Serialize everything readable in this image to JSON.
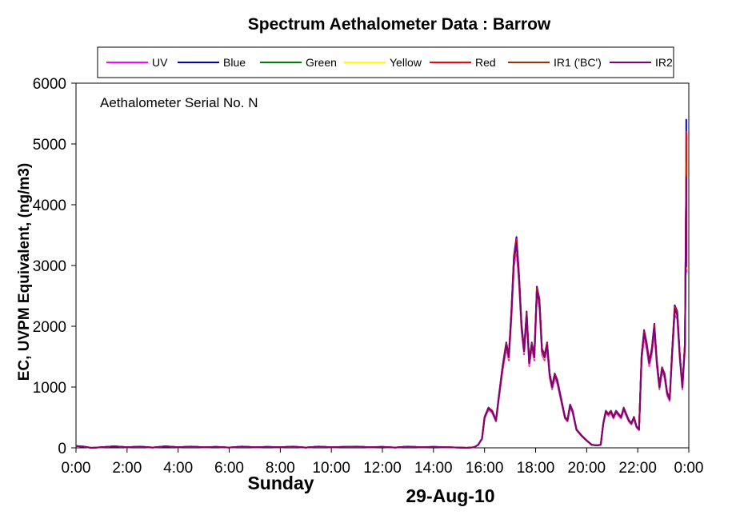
{
  "chart_data": {
    "type": "line",
    "title": "Spectrum Aethalometer Data  :  Barrow",
    "ylabel": "EC, UVPM Equivalent, (ng/m3)",
    "annotation": "Aethalometer  Serial No. N",
    "day_label": "Sunday",
    "date_label": "29-Aug-10",
    "ylim": [
      0,
      6000
    ],
    "xlim": [
      0,
      24
    ],
    "y_ticks": [
      "0",
      "1000",
      "2000",
      "3000",
      "4000",
      "5000",
      "6000"
    ],
    "x_ticks": [
      "0:00",
      "2:00",
      "4:00",
      "6:00",
      "8:00",
      "10:00",
      "12:00",
      "14:00",
      "16:00",
      "18:00",
      "20:00",
      "22:00",
      "0:00"
    ],
    "legend_position": "top",
    "grid": false,
    "base_series": [
      [
        0,
        30
      ],
      [
        0.3,
        20
      ],
      [
        0.6,
        0
      ],
      [
        1,
        10
      ],
      [
        1.5,
        25
      ],
      [
        2,
        10
      ],
      [
        2.5,
        20
      ],
      [
        3,
        5
      ],
      [
        3.5,
        25
      ],
      [
        4,
        10
      ],
      [
        4.5,
        20
      ],
      [
        5,
        10
      ],
      [
        5.5,
        15
      ],
      [
        6,
        5
      ],
      [
        6.5,
        20
      ],
      [
        7,
        10
      ],
      [
        7.5,
        15
      ],
      [
        8,
        10
      ],
      [
        8.5,
        20
      ],
      [
        9,
        5
      ],
      [
        9.5,
        20
      ],
      [
        10,
        10
      ],
      [
        10.5,
        15
      ],
      [
        11,
        20
      ],
      [
        11.5,
        10
      ],
      [
        12,
        15
      ],
      [
        12.5,
        5
      ],
      [
        13,
        20
      ],
      [
        13.5,
        10
      ],
      [
        14,
        15
      ],
      [
        14.5,
        10
      ],
      [
        15,
        5
      ],
      [
        15.3,
        0
      ],
      [
        15.6,
        10
      ],
      [
        15.75,
        50
      ],
      [
        15.9,
        150
      ],
      [
        16.0,
        500
      ],
      [
        16.15,
        650
      ],
      [
        16.3,
        600
      ],
      [
        16.45,
        450
      ],
      [
        16.55,
        800
      ],
      [
        16.7,
        1300
      ],
      [
        16.85,
        1700
      ],
      [
        16.95,
        1500
      ],
      [
        17.05,
        2200
      ],
      [
        17.15,
        3100
      ],
      [
        17.25,
        3400
      ],
      [
        17.35,
        2800
      ],
      [
        17.45,
        2000
      ],
      [
        17.55,
        1600
      ],
      [
        17.65,
        2200
      ],
      [
        17.75,
        1400
      ],
      [
        17.85,
        1700
      ],
      [
        17.95,
        1500
      ],
      [
        18.05,
        2600
      ],
      [
        18.15,
        2400
      ],
      [
        18.25,
        1600
      ],
      [
        18.35,
        1500
      ],
      [
        18.45,
        1700
      ],
      [
        18.55,
        1200
      ],
      [
        18.65,
        1000
      ],
      [
        18.75,
        1200
      ],
      [
        18.85,
        1100
      ],
      [
        18.95,
        900
      ],
      [
        19.05,
        700
      ],
      [
        19.15,
        500
      ],
      [
        19.25,
        450
      ],
      [
        19.35,
        700
      ],
      [
        19.45,
        600
      ],
      [
        19.6,
        300
      ],
      [
        19.8,
        200
      ],
      [
        20.0,
        120
      ],
      [
        20.2,
        50
      ],
      [
        20.4,
        40
      ],
      [
        20.55,
        50
      ],
      [
        20.65,
        400
      ],
      [
        20.75,
        600
      ],
      [
        20.85,
        550
      ],
      [
        20.95,
        600
      ],
      [
        21.05,
        500
      ],
      [
        21.15,
        600
      ],
      [
        21.25,
        550
      ],
      [
        21.35,
        500
      ],
      [
        21.45,
        650
      ],
      [
        21.55,
        550
      ],
      [
        21.65,
        450
      ],
      [
        21.75,
        400
      ],
      [
        21.85,
        500
      ],
      [
        21.95,
        350
      ],
      [
        22.05,
        300
      ],
      [
        22.15,
        1500
      ],
      [
        22.25,
        1900
      ],
      [
        22.35,
        1700
      ],
      [
        22.45,
        1400
      ],
      [
        22.55,
        1600
      ],
      [
        22.65,
        2000
      ],
      [
        22.75,
        1400
      ],
      [
        22.85,
        1000
      ],
      [
        22.95,
        1300
      ],
      [
        23.05,
        1200
      ],
      [
        23.15,
        900
      ],
      [
        23.25,
        800
      ],
      [
        23.35,
        1600
      ],
      [
        23.45,
        2300
      ],
      [
        23.55,
        2200
      ],
      [
        23.65,
        1500
      ],
      [
        23.75,
        1000
      ],
      [
        23.85,
        1700
      ],
      [
        24.2,
        4500
      ],
      [
        24.3,
        5000
      ],
      [
        24.4,
        3000
      ]
    ],
    "series": [
      {
        "name": "UV",
        "color": "#ff00ff",
        "scale": 0.96,
        "last": [
          24.3,
          4600
        ]
      },
      {
        "name": "Blue",
        "color": "#0000cc",
        "scale": 1.02,
        "last": [
          24.3,
          5400
        ]
      },
      {
        "name": "Green",
        "color": "#008000",
        "scale": 1.0,
        "last": [
          24.3,
          5000
        ]
      },
      {
        "name": "Yellow",
        "color": "#ffff00",
        "scale": 0.98,
        "last": [
          24.3,
          4700
        ]
      },
      {
        "name": "Red",
        "color": "#ff0000",
        "scale": 1.01,
        "last": [
          24.3,
          5200
        ]
      },
      {
        "name": "IR1 ('BC')",
        "color": "#993300",
        "scale": 1.0,
        "last": [
          24.3,
          4500
        ]
      },
      {
        "name": "IR2",
        "color": "#800080",
        "scale": 0.99,
        "last": [
          24.3,
          3900
        ]
      }
    ]
  }
}
